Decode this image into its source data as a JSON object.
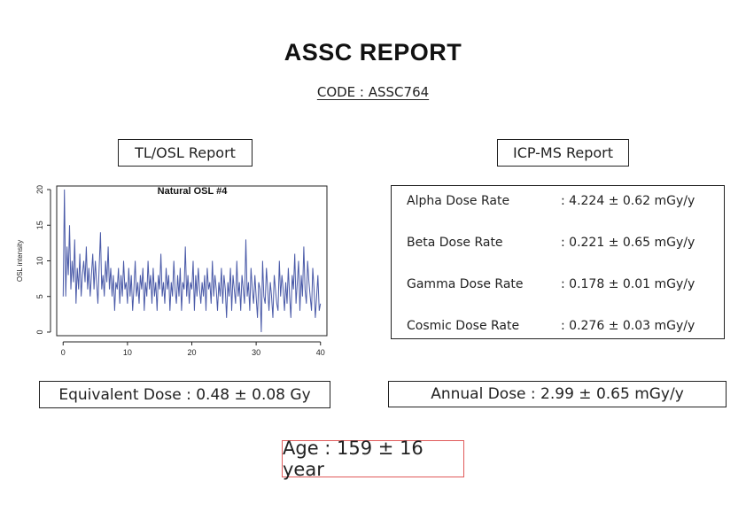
{
  "header": {
    "title": "ASSC REPORT",
    "code": "CODE : ASSC764"
  },
  "tl_osl": {
    "section_label": "TL/OSL Report",
    "equivalent_dose": "Equivalent Dose : 0.48 ± 0.08 Gy"
  },
  "icp_ms": {
    "section_label": "ICP-MS Report",
    "rates": [
      {
        "name": "Alpha Dose Rate",
        "value": ": 4.224 ± 0.62 mGy/y"
      },
      {
        "name": "Beta Dose Rate",
        "value": ": 0.221 ± 0.65 mGy/y"
      },
      {
        "name": "Gamma Dose Rate",
        "value": ": 0.178 ± 0.01 mGy/y"
      },
      {
        "name": "Cosmic Dose Rate",
        "value": ": 0.276 ± 0.03 mGy/y"
      }
    ],
    "annual_dose": "Annual Dose : 2.99 ± 0.65 mGy/y"
  },
  "age": "Age : 159 ± 16 year",
  "colors": {
    "series_line": "#4a5aa8",
    "age_border": "#e05a5a"
  },
  "chart_data": {
    "type": "line",
    "title": "Natural OSL #4",
    "xlabel": "",
    "ylabel": "OSL intensity",
    "xlim": [
      -1,
      41
    ],
    "ylim": [
      -0.5,
      20.5
    ],
    "xticks": [
      0,
      10,
      20,
      30,
      40
    ],
    "yticks": [
      0,
      5,
      10,
      15,
      20
    ],
    "grid": false,
    "series": [
      {
        "x": [
          0.0,
          0.2,
          0.4,
          0.6,
          0.8,
          1.0,
          1.2,
          1.4,
          1.6,
          1.8,
          2.0,
          2.2,
          2.4,
          2.6,
          2.8,
          3.0,
          3.2,
          3.4,
          3.6,
          3.8,
          4.0,
          4.2,
          4.4,
          4.6,
          4.8,
          5.0,
          5.2,
          5.4,
          5.6,
          5.8,
          6.0,
          6.2,
          6.4,
          6.6,
          6.8,
          7.0,
          7.2,
          7.4,
          7.6,
          7.8,
          8.0,
          8.2,
          8.4,
          8.6,
          8.8,
          9.0,
          9.2,
          9.4,
          9.6,
          9.8,
          10.0,
          10.2,
          10.4,
          10.6,
          10.8,
          11.0,
          11.2,
          11.4,
          11.6,
          11.8,
          12.0,
          12.2,
          12.4,
          12.6,
          12.8,
          13.0,
          13.2,
          13.4,
          13.6,
          13.8,
          14.0,
          14.2,
          14.4,
          14.6,
          14.8,
          15.0,
          15.2,
          15.4,
          15.6,
          15.8,
          16.0,
          16.2,
          16.4,
          16.6,
          16.8,
          17.0,
          17.2,
          17.4,
          17.6,
          17.8,
          18.0,
          18.2,
          18.4,
          18.6,
          18.8,
          19.0,
          19.2,
          19.4,
          19.6,
          19.8,
          20.0,
          20.2,
          20.4,
          20.6,
          20.8,
          21.0,
          21.2,
          21.4,
          21.6,
          21.8,
          22.0,
          22.2,
          22.4,
          22.6,
          22.8,
          23.0,
          23.2,
          23.4,
          23.6,
          23.8,
          24.0,
          24.2,
          24.4,
          24.6,
          24.8,
          25.0,
          25.2,
          25.4,
          25.6,
          25.8,
          26.0,
          26.2,
          26.4,
          26.6,
          26.8,
          27.0,
          27.2,
          27.4,
          27.6,
          27.8,
          28.0,
          28.2,
          28.4,
          28.6,
          28.8,
          29.0,
          29.2,
          29.4,
          29.6,
          29.8,
          30.0,
          30.2,
          30.4,
          30.6,
          30.8,
          31.0,
          31.2,
          31.4,
          31.6,
          31.8,
          32.0,
          32.2,
          32.4,
          32.6,
          32.8,
          33.0,
          33.2,
          33.4,
          33.6,
          33.8,
          34.0,
          34.2,
          34.4,
          34.6,
          34.8,
          35.0,
          35.2,
          35.4,
          35.6,
          35.8,
          36.0,
          36.2,
          36.4,
          36.6,
          36.8,
          37.0,
          37.2,
          37.4,
          37.6,
          37.8,
          38.0,
          38.2,
          38.4,
          38.6,
          38.8,
          39.0,
          39.2,
          39.4,
          39.6,
          39.8,
          40.0
        ],
        "values": [
          5,
          20,
          5,
          12,
          8,
          15,
          6,
          10,
          7,
          13,
          4,
          9,
          6,
          11,
          5,
          8,
          10,
          7,
          12,
          6,
          9,
          5,
          8,
          11,
          6,
          10,
          7,
          4,
          9,
          14,
          6,
          8,
          5,
          10,
          7,
          12,
          6,
          9,
          5,
          8,
          3,
          7,
          6,
          9,
          4,
          8,
          5,
          10,
          6,
          7,
          4,
          9,
          5,
          8,
          3,
          6,
          10,
          5,
          7,
          4,
          8,
          6,
          9,
          3,
          7,
          5,
          10,
          6,
          8,
          4,
          9,
          5,
          7,
          3,
          8,
          6,
          11,
          5,
          7,
          4,
          9,
          6,
          8,
          3,
          7,
          5,
          10,
          6,
          4,
          8,
          5,
          9,
          3,
          7,
          6,
          12,
          5,
          8,
          4,
          7,
          6,
          10,
          3,
          8,
          5,
          9,
          6,
          4,
          7,
          5,
          8,
          3,
          9,
          6,
          7,
          4,
          10,
          5,
          8,
          6,
          3,
          7,
          5,
          9,
          4,
          8,
          6,
          2,
          7,
          5,
          9,
          3,
          8,
          6,
          4,
          10,
          5,
          7,
          3,
          8,
          6,
          4,
          13,
          5,
          7,
          3,
          9,
          6,
          4,
          8,
          5,
          2,
          7,
          6,
          0,
          10,
          5,
          4,
          9,
          6,
          3,
          7,
          5,
          2,
          8,
          6,
          4,
          3,
          10,
          5,
          8,
          6,
          3,
          7,
          4,
          9,
          5,
          2,
          8,
          6,
          11,
          4,
          7,
          10,
          3,
          8,
          5,
          12,
          6,
          4,
          10,
          7,
          5,
          3,
          9,
          6,
          2,
          5,
          8,
          3,
          4
        ]
      }
    ]
  }
}
